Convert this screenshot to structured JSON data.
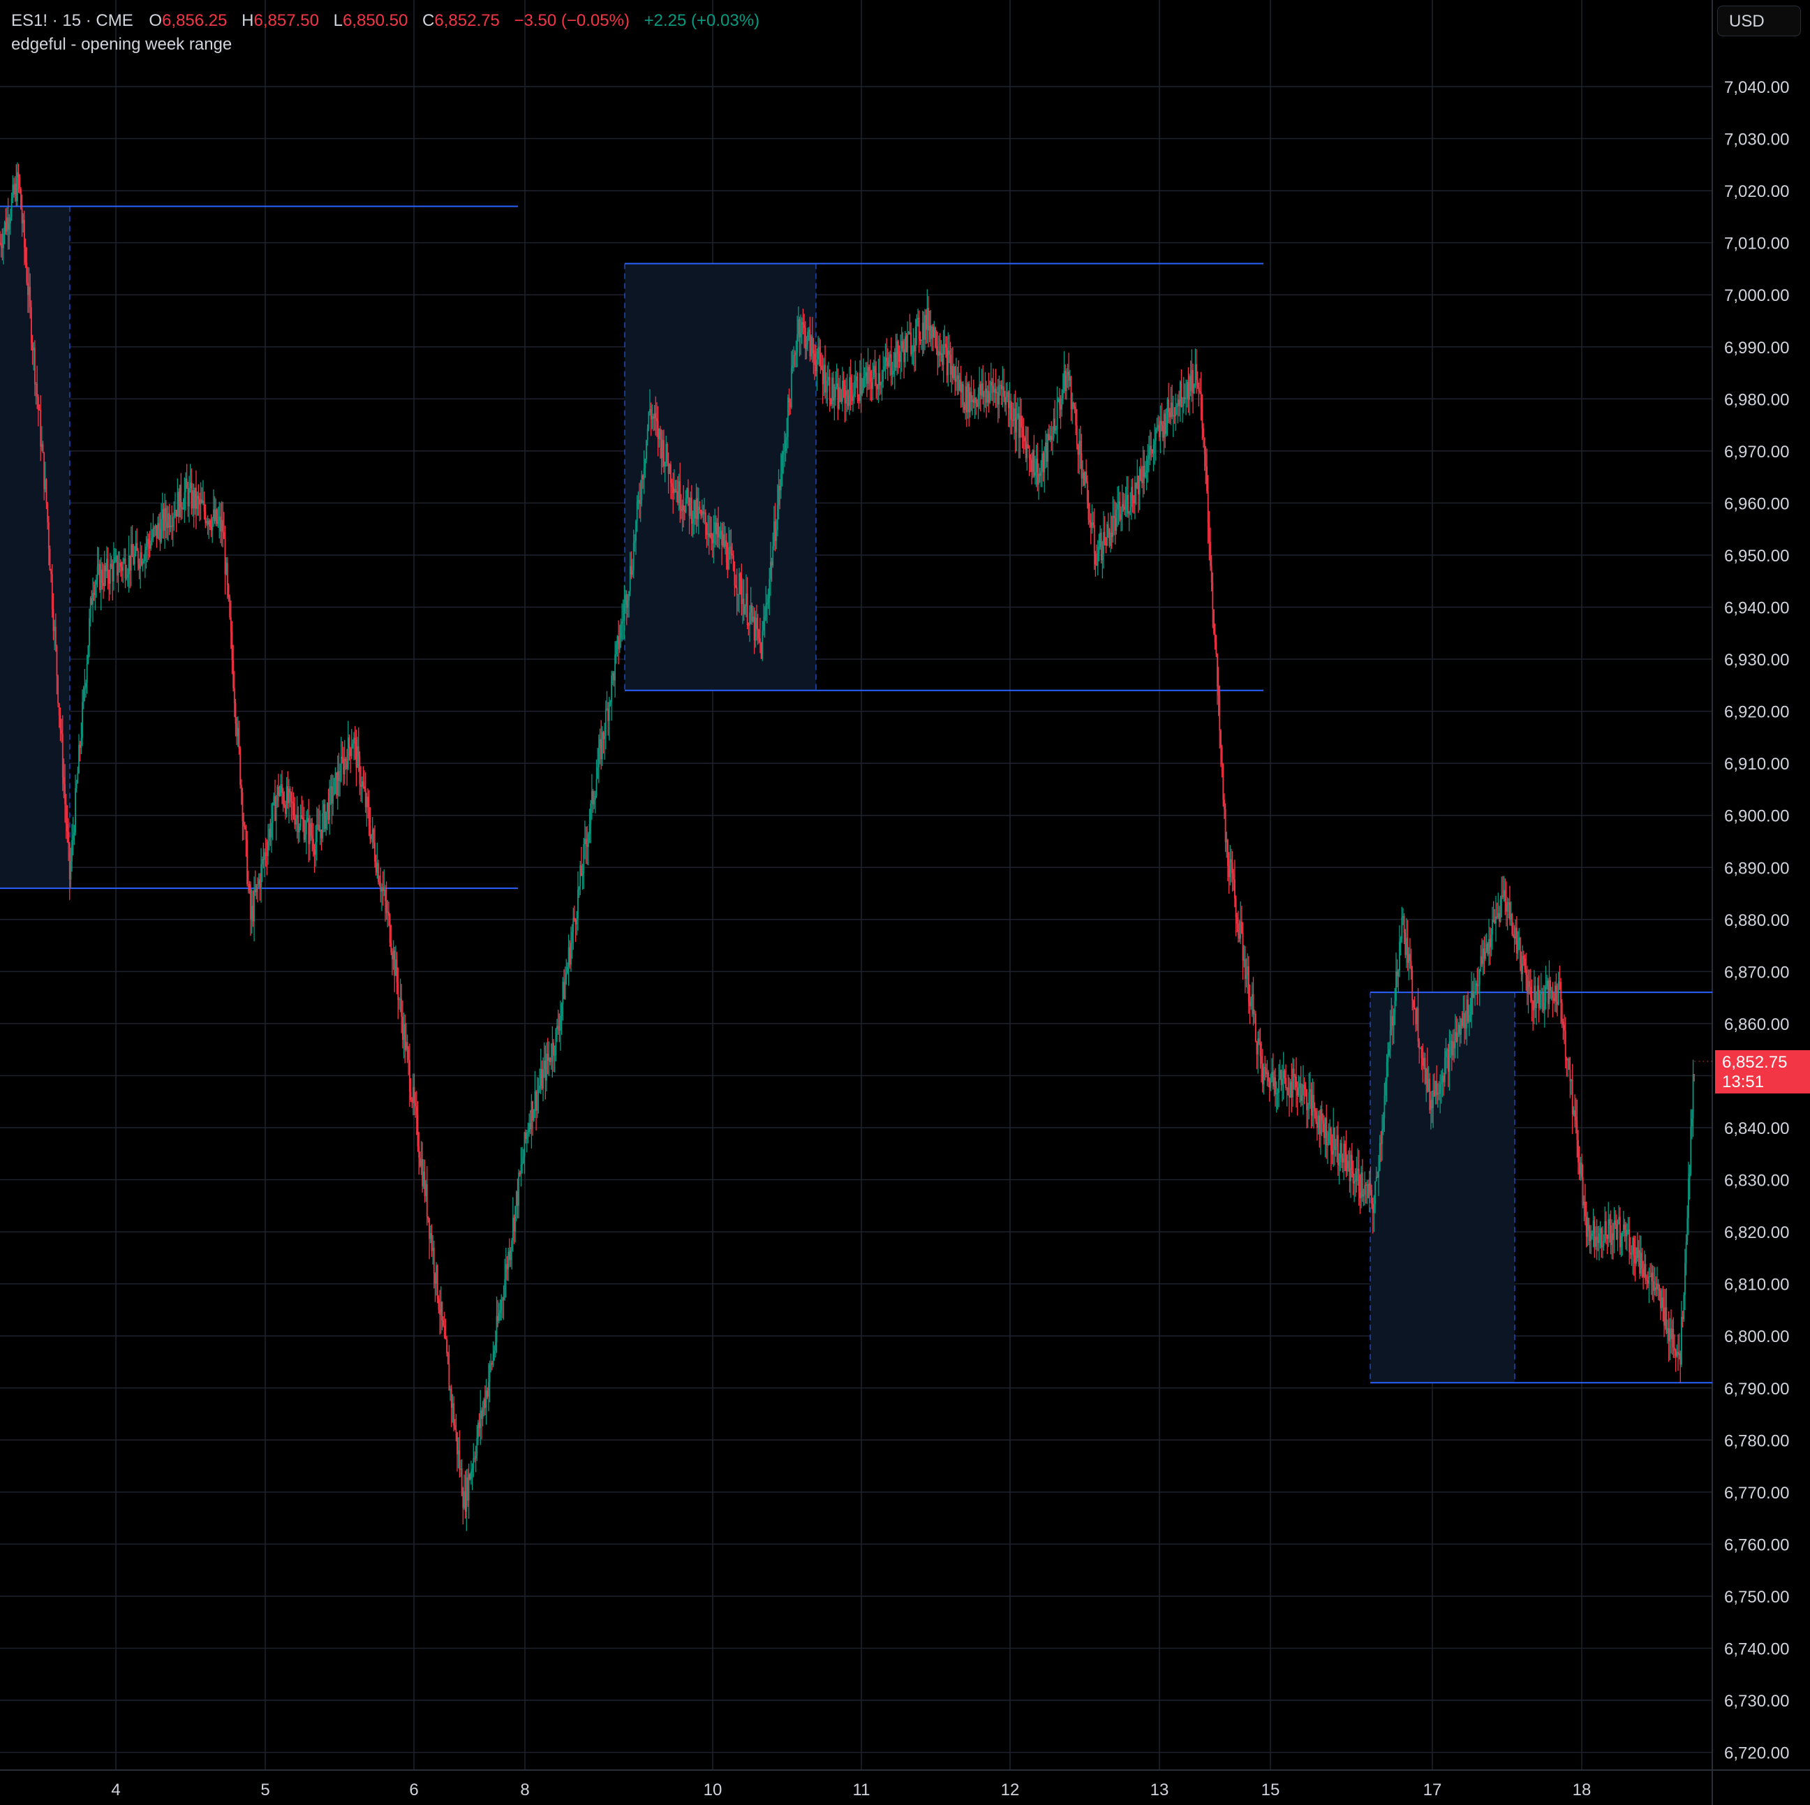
{
  "legend": {
    "symbol": "ES1! · 15 · CME",
    "o_label": "O",
    "o_value": "6,856.25",
    "h_label": "H",
    "h_value": "6,857.50",
    "l_label": "L",
    "l_value": "6,850.50",
    "c_label": "C",
    "c_value": "6,852.75",
    "change": "−3.50 (−0.05%)",
    "change2": "+2.25 (+0.03%)"
  },
  "indicator": {
    "name": "edgeful - opening week range"
  },
  "currency": {
    "label": "USD"
  },
  "last_price": {
    "value": "6,852.75",
    "countdown": "13:51"
  },
  "colors": {
    "up": "#089981",
    "down": "#f23645",
    "range_line": "#2962ff",
    "grid": "#1e222d",
    "box_fill": "#0b1524"
  },
  "chart_data": {
    "type": "candlestick",
    "symbol": "ES1!",
    "interval": "15",
    "exchange": "CME",
    "ylim": [
      6715,
      7050
    ],
    "y_ticks": [
      "7,040.00",
      "7,030.00",
      "7,020.00",
      "7,010.00",
      "7,000.00",
      "6,990.00",
      "6,980.00",
      "6,970.00",
      "6,960.00",
      "6,950.00",
      "6,940.00",
      "6,930.00",
      "6,920.00",
      "6,910.00",
      "6,900.00",
      "6,890.00",
      "6,880.00",
      "6,870.00",
      "6,860.00",
      "6,850.00",
      "6,840.00",
      "6,830.00",
      "6,820.00",
      "6,810.00",
      "6,800.00",
      "6,790.00",
      "6,780.00",
      "6,770.00",
      "6,760.00",
      "6,750.00",
      "6,740.00",
      "6,730.00",
      "6,720.00"
    ],
    "x_ticks": [
      "4",
      "5",
      "6",
      "8",
      "10",
      "11",
      "12",
      "13",
      "15",
      "17",
      "18"
    ],
    "grid": true,
    "opening_week_ranges": [
      {
        "high": 7017,
        "low": 6886
      },
      {
        "high": 7006,
        "low": 6924
      },
      {
        "high": 6866,
        "low": 6791
      }
    ],
    "price_path": [
      {
        "t": 0.0,
        "p": 7010
      },
      {
        "t": 0.2,
        "p": 7022
      },
      {
        "t": 0.5,
        "p": 6960
      },
      {
        "t": 0.75,
        "p": 6888
      },
      {
        "t": 1.0,
        "p": 6945
      },
      {
        "t": 1.5,
        "p": 6950
      },
      {
        "t": 2.0,
        "p": 6962
      },
      {
        "t": 2.4,
        "p": 6955
      },
      {
        "t": 2.7,
        "p": 6880
      },
      {
        "t": 3.0,
        "p": 6905
      },
      {
        "t": 3.4,
        "p": 6895
      },
      {
        "t": 3.8,
        "p": 6915
      },
      {
        "t": 4.2,
        "p": 6878
      },
      {
        "t": 4.6,
        "p": 6825
      },
      {
        "t": 5.0,
        "p": 6768
      },
      {
        "t": 5.3,
        "p": 6795
      },
      {
        "t": 5.7,
        "p": 6842
      },
      {
        "t": 6.0,
        "p": 6858
      },
      {
        "t": 6.4,
        "p": 6905
      },
      {
        "t": 6.8,
        "p": 6948
      },
      {
        "t": 7.0,
        "p": 6978
      },
      {
        "t": 7.3,
        "p": 6962
      },
      {
        "t": 7.8,
        "p": 6952
      },
      {
        "t": 8.2,
        "p": 6932
      },
      {
        "t": 8.6,
        "p": 6995
      },
      {
        "t": 9.0,
        "p": 6980
      },
      {
        "t": 9.5,
        "p": 6985
      },
      {
        "t": 10.0,
        "p": 6995
      },
      {
        "t": 10.4,
        "p": 6980
      },
      {
        "t": 10.8,
        "p": 6982
      },
      {
        "t": 11.2,
        "p": 6965
      },
      {
        "t": 11.5,
        "p": 6985
      },
      {
        "t": 11.8,
        "p": 6950
      },
      {
        "t": 12.2,
        "p": 6962
      },
      {
        "t": 12.6,
        "p": 6978
      },
      {
        "t": 12.9,
        "p": 6985
      },
      {
        "t": 13.0,
        "p": 6962
      },
      {
        "t": 13.2,
        "p": 6895
      },
      {
        "t": 13.6,
        "p": 6850
      },
      {
        "t": 14.0,
        "p": 6848
      },
      {
        "t": 14.4,
        "p": 6836
      },
      {
        "t": 14.8,
        "p": 6825
      },
      {
        "t": 15.1,
        "p": 6880
      },
      {
        "t": 15.4,
        "p": 6845
      },
      {
        "t": 15.8,
        "p": 6862
      },
      {
        "t": 16.2,
        "p": 6885
      },
      {
        "t": 16.5,
        "p": 6865
      },
      {
        "t": 16.8,
        "p": 6866
      },
      {
        "t": 17.1,
        "p": 6820
      },
      {
        "t": 17.5,
        "p": 6820
      },
      {
        "t": 17.8,
        "p": 6810
      },
      {
        "t": 18.1,
        "p": 6796
      },
      {
        "t": 18.25,
        "p": 6852.75
      }
    ]
  }
}
